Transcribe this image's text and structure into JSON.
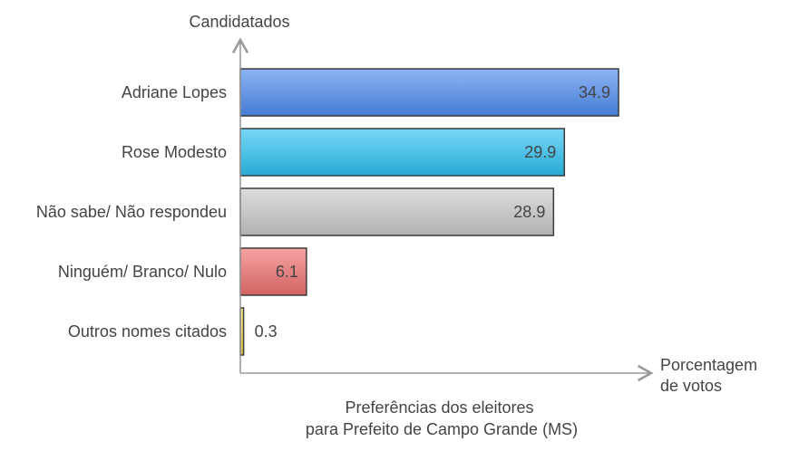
{
  "chart_data": {
    "type": "bar",
    "orientation": "horizontal",
    "title": "Preferências dos eleitores para Prefeito de Campo Grande (MS)",
    "title_lines": [
      "Preferências dos eleitores",
      "para Prefeito de Campo Grande (MS)"
    ],
    "ylabel": "Candidatados",
    "xlabel_lines": [
      "Porcentagem",
      "de votos"
    ],
    "categories": [
      "Adriane Lopes",
      "Rose Modesto",
      "Não sabe/ Não respondeu",
      "Ninguém/ Branco/ Nulo",
      "Outros nomes citados"
    ],
    "values": [
      34.9,
      29.9,
      28.9,
      6.1,
      0.3
    ],
    "value_labels": [
      "34.9",
      "29.9",
      "28.9",
      "6.1",
      "0.3"
    ],
    "colors": [
      "#4f8df0",
      "#2ec2f2",
      "#c9c9c9",
      "#f07070",
      "#f2e04a"
    ],
    "xlim": [
      0,
      40
    ],
    "grid": false,
    "legend": "none"
  }
}
